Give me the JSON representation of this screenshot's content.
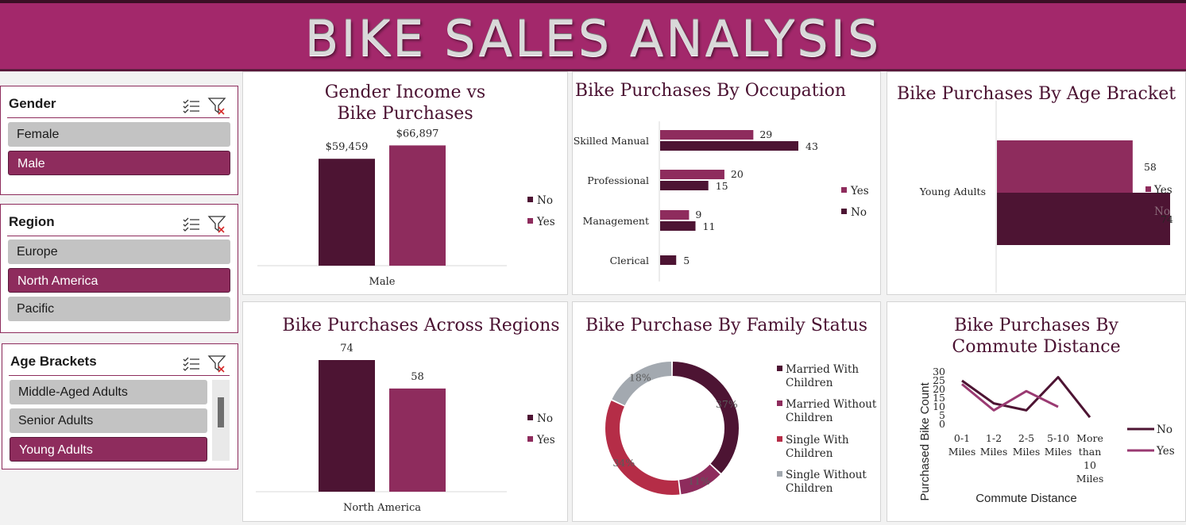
{
  "header": {
    "title": "BIKE SALES ANALYSIS"
  },
  "colors": {
    "no": "#4d1433",
    "yes": "#8e2c5d",
    "single_with_children": "#b52d47",
    "single_without_children": "#a3a9b0",
    "slicer_selected": "#8e2c5d",
    "slicer_unselected": "#c3c3c3",
    "banner": "#a3286b"
  },
  "slicers": {
    "gender": {
      "title": "Gender",
      "items": [
        {
          "label": "Female",
          "selected": false
        },
        {
          "label": "Male",
          "selected": true
        }
      ]
    },
    "region": {
      "title": "Region",
      "items": [
        {
          "label": "Europe",
          "selected": false
        },
        {
          "label": "North America",
          "selected": true
        },
        {
          "label": "Pacific",
          "selected": false
        }
      ]
    },
    "age": {
      "title": "Age Brackets",
      "items": [
        {
          "label": "Middle-Aged Adults",
          "selected": false
        },
        {
          "label": "Senior Adults",
          "selected": false
        },
        {
          "label": "Young Adults",
          "selected": true
        }
      ]
    }
  },
  "chart_data": [
    {
      "id": "gender_income",
      "type": "bar",
      "title": "Gender Income vs Bike Purchases",
      "categories": [
        "Male"
      ],
      "series": [
        {
          "name": "No",
          "values": [
            59459
          ],
          "labels": [
            "$59,459"
          ]
        },
        {
          "name": "Yes",
          "values": [
            66897
          ],
          "labels": [
            "$66,897"
          ]
        }
      ],
      "ylim": [
        0,
        75000
      ],
      "legend": "right"
    },
    {
      "id": "occupation",
      "type": "bar",
      "orientation": "horizontal",
      "title": "Bike Purchases By Occupation",
      "categories": [
        "Skilled Manual",
        "Professional",
        "Management",
        "Clerical"
      ],
      "series": [
        {
          "name": "Yes",
          "values": [
            29,
            20,
            9,
            null
          ],
          "labels": [
            "29",
            "20",
            "9",
            ""
          ]
        },
        {
          "name": "No",
          "values": [
            43,
            15,
            11,
            5
          ],
          "labels": [
            "43",
            "15",
            "11",
            "5"
          ]
        }
      ],
      "xlim": [
        0,
        50
      ],
      "legend": "right"
    },
    {
      "id": "age_bracket",
      "type": "bar",
      "orientation": "horizontal",
      "title": "Bike Purchases By Age Bracket",
      "categories": [
        "Young Adults"
      ],
      "series": [
        {
          "name": "Yes",
          "values": [
            58
          ],
          "labels": [
            "58"
          ]
        },
        {
          "name": "No",
          "values": [
            74
          ],
          "labels": [
            "74"
          ]
        }
      ],
      "xlim": [
        0,
        74
      ],
      "legend": "right"
    },
    {
      "id": "regions",
      "type": "bar",
      "title": "Bike Purchases Across Regions",
      "categories": [
        "North America"
      ],
      "series": [
        {
          "name": "No",
          "values": [
            74
          ],
          "labels": [
            "74"
          ]
        },
        {
          "name": "Yes",
          "values": [
            58
          ],
          "labels": [
            "58"
          ]
        }
      ],
      "ylim": [
        0,
        80
      ],
      "legend": "right"
    },
    {
      "id": "family",
      "type": "pie",
      "donut": true,
      "title": "Bike Purchase By Family Status",
      "categories": [
        "Married With Children",
        "Married Without Children",
        "Single With Children",
        "Single Without Children"
      ],
      "values": [
        37,
        11,
        34,
        18
      ],
      "labels": [
        "37%",
        "11%",
        "34%",
        "18%"
      ],
      "legend": "right"
    },
    {
      "id": "commute",
      "type": "line",
      "title": "Bike Purchases By Commute Distance",
      "categories": [
        "0-1 Miles",
        "1-2 Miles",
        "2-5 Miles",
        "5-10 Miles",
        "More than 10 Miles"
      ],
      "series": [
        {
          "name": "No",
          "values": [
            25,
            12,
            8,
            27,
            4
          ]
        },
        {
          "name": "Yes",
          "values": [
            23,
            8,
            19,
            10,
            null
          ]
        }
      ],
      "yticks": [
        "0",
        "5",
        "10",
        "15",
        "20",
        "25",
        "30"
      ],
      "ylim": [
        0,
        30
      ],
      "xlabel": "Commute Distance",
      "ylabel": "Purchased Bike Count",
      "legend": "right"
    }
  ]
}
